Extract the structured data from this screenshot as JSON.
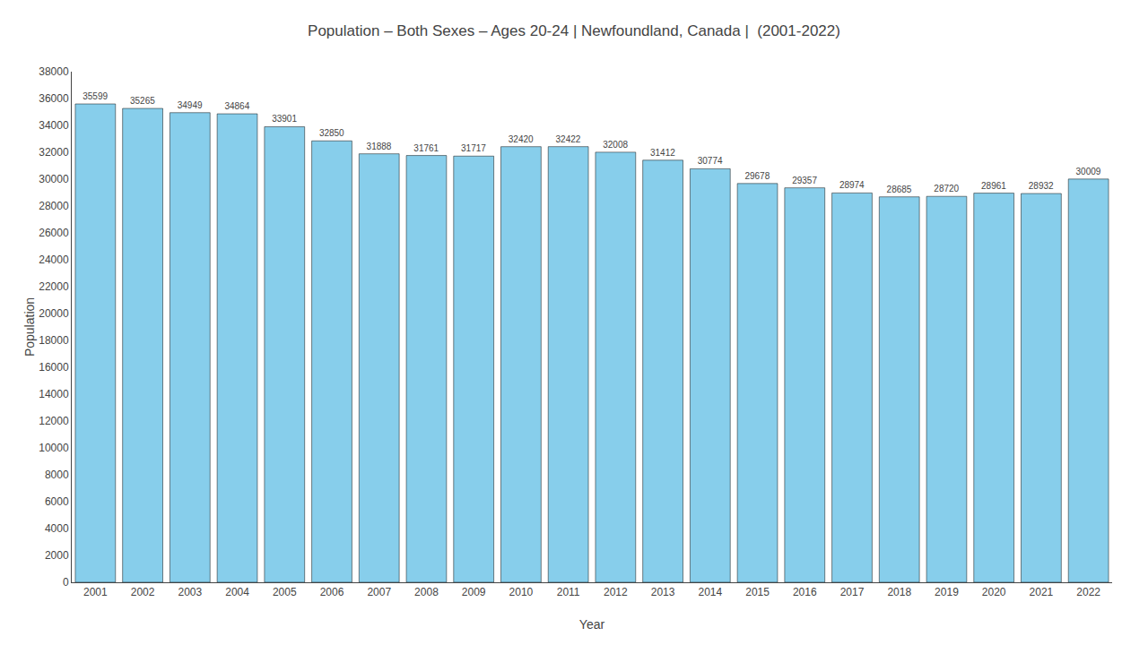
{
  "chart_data": {
    "type": "bar",
    "title": "Population – Both Sexes – Ages 20-24 | Newfoundland, Canada |  (2001-2022)",
    "x_label": "Year",
    "y_label": "Population",
    "categories": [
      "2001",
      "2002",
      "2003",
      "2004",
      "2005",
      "2006",
      "2007",
      "2008",
      "2009",
      "2010",
      "2011",
      "2012",
      "2013",
      "2014",
      "2015",
      "2016",
      "2017",
      "2018",
      "2019",
      "2020",
      "2021",
      "2022"
    ],
    "values": [
      35599,
      35265,
      34949,
      34864,
      33901,
      32850,
      31888,
      31761,
      31717,
      32420,
      32422,
      32008,
      31412,
      30774,
      29678,
      29357,
      28974,
      28685,
      28720,
      28961,
      28932,
      30009
    ],
    "color": "#87CEEB",
    "ylim": [
      0,
      38000
    ],
    "yticks": [
      0,
      2000,
      4000,
      6000,
      8000,
      10000,
      12000,
      14000,
      16000,
      18000,
      20000,
      22000,
      24000,
      26000,
      28000,
      30000,
      32000,
      34000,
      36000,
      38000
    ],
    "grid": false,
    "data_labels": true
  }
}
